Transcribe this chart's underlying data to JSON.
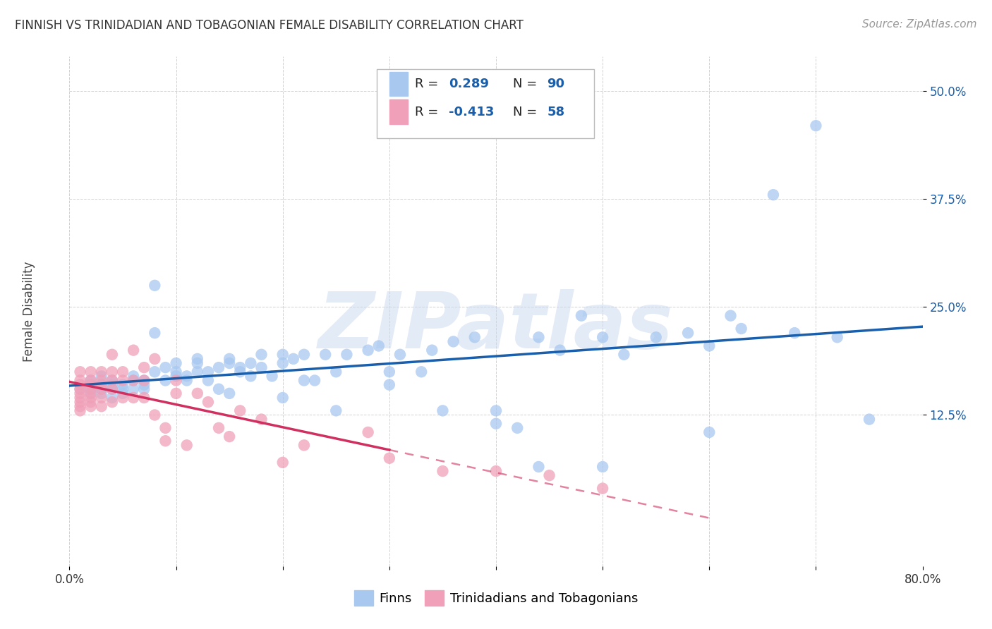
{
  "title": "FINNISH VS TRINIDADIAN AND TOBAGONIAN FEMALE DISABILITY CORRELATION CHART",
  "source": "Source: ZipAtlas.com",
  "ylabel": "Female Disability",
  "xlim": [
    0.0,
    0.8
  ],
  "ylim": [
    -0.05,
    0.54
  ],
  "yticks": [
    0.125,
    0.25,
    0.375,
    0.5
  ],
  "ytick_labels": [
    "12.5%",
    "25.0%",
    "37.5%",
    "50.0%"
  ],
  "xticks": [
    0.0,
    0.1,
    0.2,
    0.3,
    0.4,
    0.5,
    0.6,
    0.7,
    0.8
  ],
  "xtick_labels_show": [
    "0.0%",
    "80.0%"
  ],
  "blue_color": "#A8C8F0",
  "pink_color": "#F0A0B8",
  "blue_line_color": "#1A5FAB",
  "pink_line_color": "#D03060",
  "watermark_color": "#C8D8F0",
  "legend_label_blue": "Finns",
  "legend_label_pink": "Trinidadians and Tobagonians",
  "blue_scatter_x": [
    0.01,
    0.02,
    0.02,
    0.02,
    0.03,
    0.03,
    0.03,
    0.03,
    0.04,
    0.04,
    0.04,
    0.04,
    0.05,
    0.05,
    0.05,
    0.06,
    0.06,
    0.06,
    0.07,
    0.07,
    0.07,
    0.08,
    0.08,
    0.08,
    0.09,
    0.09,
    0.1,
    0.1,
    0.1,
    0.11,
    0.11,
    0.12,
    0.12,
    0.12,
    0.13,
    0.13,
    0.14,
    0.14,
    0.15,
    0.15,
    0.16,
    0.16,
    0.17,
    0.17,
    0.18,
    0.18,
    0.19,
    0.2,
    0.2,
    0.21,
    0.22,
    0.22,
    0.23,
    0.24,
    0.25,
    0.26,
    0.28,
    0.29,
    0.3,
    0.31,
    0.33,
    0.34,
    0.36,
    0.38,
    0.4,
    0.42,
    0.44,
    0.46,
    0.48,
    0.5,
    0.52,
    0.55,
    0.58,
    0.6,
    0.62,
    0.63,
    0.66,
    0.68,
    0.7,
    0.72,
    0.44,
    0.3,
    0.2,
    0.5,
    0.4,
    0.35,
    0.25,
    0.15,
    0.6,
    0.75
  ],
  "blue_scatter_y": [
    0.155,
    0.155,
    0.165,
    0.15,
    0.16,
    0.15,
    0.17,
    0.155,
    0.155,
    0.16,
    0.165,
    0.145,
    0.15,
    0.16,
    0.155,
    0.165,
    0.17,
    0.155,
    0.165,
    0.16,
    0.155,
    0.275,
    0.22,
    0.175,
    0.18,
    0.165,
    0.175,
    0.17,
    0.185,
    0.17,
    0.165,
    0.19,
    0.185,
    0.175,
    0.165,
    0.175,
    0.18,
    0.155,
    0.19,
    0.185,
    0.175,
    0.18,
    0.185,
    0.17,
    0.195,
    0.18,
    0.17,
    0.195,
    0.185,
    0.19,
    0.195,
    0.165,
    0.165,
    0.195,
    0.175,
    0.195,
    0.2,
    0.205,
    0.175,
    0.195,
    0.175,
    0.2,
    0.21,
    0.215,
    0.13,
    0.11,
    0.215,
    0.2,
    0.24,
    0.215,
    0.195,
    0.215,
    0.22,
    0.205,
    0.24,
    0.225,
    0.38,
    0.22,
    0.46,
    0.215,
    0.065,
    0.16,
    0.145,
    0.065,
    0.115,
    0.13,
    0.13,
    0.15,
    0.105,
    0.12
  ],
  "pink_scatter_x": [
    0.01,
    0.01,
    0.01,
    0.01,
    0.01,
    0.01,
    0.01,
    0.01,
    0.01,
    0.02,
    0.02,
    0.02,
    0.02,
    0.02,
    0.02,
    0.02,
    0.02,
    0.03,
    0.03,
    0.03,
    0.03,
    0.03,
    0.03,
    0.04,
    0.04,
    0.04,
    0.04,
    0.04,
    0.05,
    0.05,
    0.05,
    0.06,
    0.06,
    0.06,
    0.07,
    0.07,
    0.07,
    0.08,
    0.08,
    0.09,
    0.09,
    0.1,
    0.1,
    0.11,
    0.12,
    0.13,
    0.14,
    0.15,
    0.16,
    0.18,
    0.2,
    0.22,
    0.28,
    0.3,
    0.35,
    0.4,
    0.45,
    0.5
  ],
  "pink_scatter_y": [
    0.175,
    0.165,
    0.16,
    0.155,
    0.15,
    0.145,
    0.14,
    0.135,
    0.13,
    0.175,
    0.165,
    0.16,
    0.155,
    0.15,
    0.145,
    0.14,
    0.135,
    0.175,
    0.165,
    0.16,
    0.155,
    0.145,
    0.135,
    0.195,
    0.175,
    0.165,
    0.155,
    0.14,
    0.175,
    0.165,
    0.145,
    0.2,
    0.165,
    0.145,
    0.18,
    0.165,
    0.145,
    0.19,
    0.125,
    0.11,
    0.095,
    0.165,
    0.15,
    0.09,
    0.15,
    0.14,
    0.11,
    0.1,
    0.13,
    0.12,
    0.07,
    0.09,
    0.105,
    0.075,
    0.06,
    0.06,
    0.055,
    0.04
  ]
}
